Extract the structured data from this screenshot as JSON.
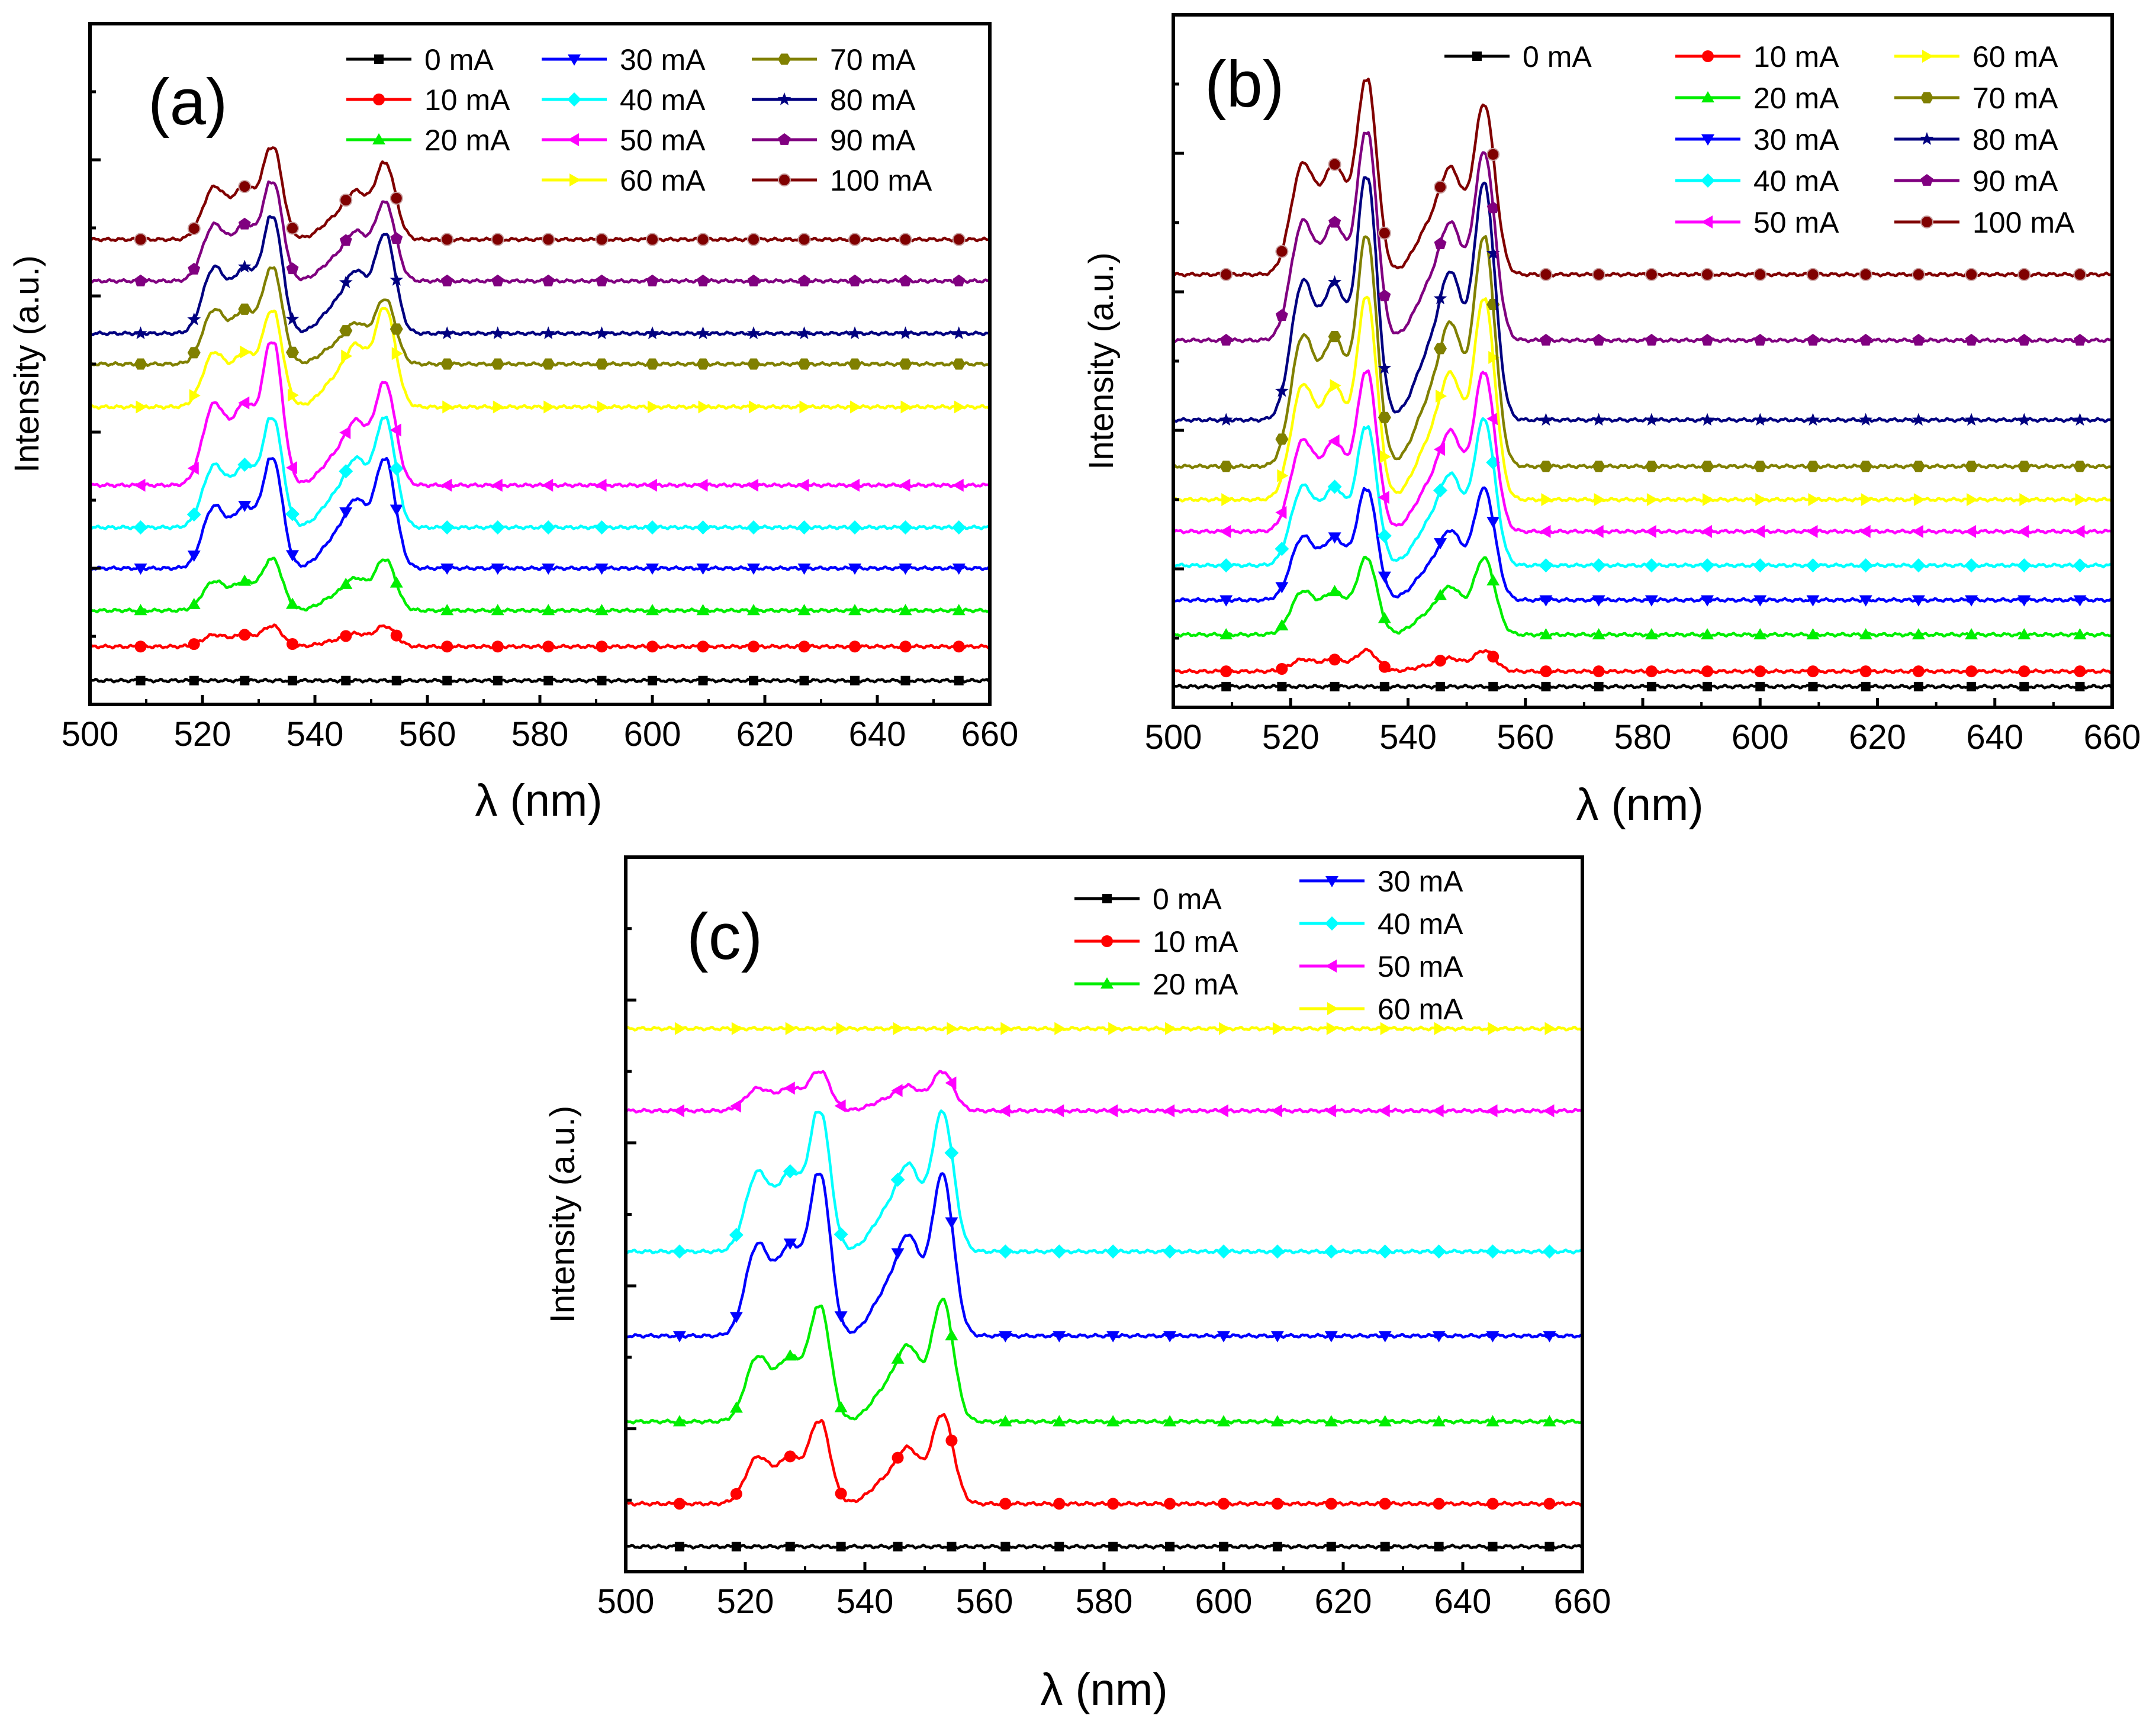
{
  "figure": {
    "xlabel": "λ (nm)",
    "ylabel": "Intensity (a.u.)",
    "xlim": [
      500,
      660
    ],
    "xticks": [
      500,
      520,
      540,
      560,
      580,
      600,
      620,
      640,
      660
    ]
  },
  "series_colors": {
    "0 mA": "#000000",
    "10 mA": "#ff0000",
    "20 mA": "#00ee00",
    "30 mA": "#0000ff",
    "40 mA": "#00ffff",
    "50 mA": "#ff00ff",
    "60 mA": "#ffff00",
    "70 mA": "#808000",
    "80 mA": "#000080",
    "90 mA": "#800080",
    "100 mA": "#800000"
  },
  "series_markers": {
    "0 mA": "square",
    "10 mA": "circle",
    "20 mA": "triangle-up",
    "30 mA": "triangle-down",
    "40 mA": "diamond",
    "50 mA": "triangle-left",
    "60 mA": "triangle-right",
    "70 mA": "hexagon",
    "80 mA": "star",
    "90 mA": "pentagon",
    "100 mA": "sphere"
  },
  "chart_data": [
    {
      "panel": "(a)",
      "type": "line",
      "title": "(a)",
      "xlabel": "λ (nm)",
      "ylabel": "Intensity (a.u.)",
      "xlim": [
        500,
        660
      ],
      "ylim": [
        0,
        100
      ],
      "peak_positions_nm": [
        532.5,
        552.5
      ],
      "shoulder_positions_nm": [
        522,
        547.5
      ],
      "series": [
        {
          "name": "0 mA",
          "baseline": 3.5,
          "peak1": 0,
          "peak2": 0
        },
        {
          "name": "10 mA",
          "baseline": 8.5,
          "peak1": 3.0,
          "peak2": 3.0
        },
        {
          "name": "20 mA",
          "baseline": 13.8,
          "peak1": 7.5,
          "peak2": 7.5
        },
        {
          "name": "30 mA",
          "baseline": 20.0,
          "peak1": 16.0,
          "peak2": 16.0
        },
        {
          "name": "40 mA",
          "baseline": 26.0,
          "peak1": 16.0,
          "peak2": 16.0
        },
        {
          "name": "50 mA",
          "baseline": 32.2,
          "peak1": 21.0,
          "peak2": 15.0
        },
        {
          "name": "60 mA",
          "baseline": 43.7,
          "peak1": 14.0,
          "peak2": 14.5
        },
        {
          "name": "70 mA",
          "baseline": 50.0,
          "peak1": 14.0,
          "peak2": 9.5
        },
        {
          "name": "80 mA",
          "baseline": 54.5,
          "peak1": 17.0,
          "peak2": 14.5
        },
        {
          "name": "90 mA",
          "baseline": 62.2,
          "peak1": 14.5,
          "peak2": 11.5
        },
        {
          "name": "100 mA",
          "baseline": 68.3,
          "peak1": 13.5,
          "peak2": 11.2
        }
      ]
    },
    {
      "panel": "(b)",
      "type": "line",
      "title": "(b)",
      "xlabel": "λ (nm)",
      "ylabel": "Intensity (a.u.)",
      "xlim": [
        500,
        660
      ],
      "ylim": [
        0,
        100
      ],
      "peak_positions_nm": [
        533,
        553
      ],
      "shoulder_positions_nm": [
        522,
        547.5
      ],
      "series": [
        {
          "name": "0 mA",
          "baseline": 3.0,
          "peak1": 0,
          "peak2": 0
        },
        {
          "name": "10 mA",
          "baseline": 5.2,
          "peak1": 3.0,
          "peak2": 3.0
        },
        {
          "name": "20 mA",
          "baseline": 10.5,
          "peak1": 11.0,
          "peak2": 11.0
        },
        {
          "name": "30 mA",
          "baseline": 15.5,
          "peak1": 16.0,
          "peak2": 16.0
        },
        {
          "name": "40 mA",
          "baseline": 20.5,
          "peak1": 20.0,
          "peak2": 21.0
        },
        {
          "name": "50 mA",
          "baseline": 25.4,
          "peak1": 23.0,
          "peak2": 23.0
        },
        {
          "name": "60 mA",
          "baseline": 30.0,
          "peak1": 29.0,
          "peak2": 29.0
        },
        {
          "name": "70 mA",
          "baseline": 34.8,
          "peak1": 33.0,
          "peak2": 33.0
        },
        {
          "name": "80 mA",
          "baseline": 41.5,
          "peak1": 35.0,
          "peak2": 34.0
        },
        {
          "name": "90 mA",
          "baseline": 53.0,
          "peak1": 30.0,
          "peak2": 27.0
        },
        {
          "name": "100 mA",
          "baseline": 62.5,
          "peak1": 28.0,
          "peak2": 24.5
        }
      ]
    },
    {
      "panel": "(c)",
      "type": "line",
      "title": "(c)",
      "xlabel": "λ (nm)",
      "ylabel": "Intensity (a.u.)",
      "xlim": [
        500,
        660
      ],
      "ylim": [
        0,
        100
      ],
      "peak_positions_nm": [
        532.5,
        553
      ],
      "shoulder_positions_nm": [
        522,
        548
      ],
      "series": [
        {
          "name": "0 mA",
          "baseline": 3.5,
          "peak1": 0,
          "peak2": 0
        },
        {
          "name": "10 mA",
          "baseline": 9.5,
          "peak1": 11.5,
          "peak2": 12.5
        },
        {
          "name": "20 mA",
          "baseline": 21.0,
          "peak1": 16.0,
          "peak2": 17.0
        },
        {
          "name": "30 mA",
          "baseline": 33.0,
          "peak1": 22.5,
          "peak2": 22.5
        },
        {
          "name": "40 mA",
          "baseline": 44.8,
          "peak1": 19.5,
          "peak2": 19.5
        },
        {
          "name": "50 mA",
          "baseline": 64.5,
          "peak1": 5.5,
          "peak2": 5.5
        },
        {
          "name": "60 mA",
          "baseline": 76.0,
          "peak1": 0,
          "peak2": 0
        }
      ]
    }
  ],
  "panels": [
    {
      "label": "(a)",
      "legend_columns": [
        [
          "0 mA",
          "10 mA",
          "20 mA"
        ],
        [
          "30 mA",
          "40 mA",
          "50 mA",
          "60 mA"
        ],
        [
          "70 mA",
          "80 mA",
          "90 mA",
          "100 mA"
        ]
      ]
    },
    {
      "label": "(b)",
      "legend_columns": [
        [
          "0 mA"
        ],
        [
          "10 mA",
          "20 mA",
          "30 mA",
          "40 mA",
          "50 mA"
        ],
        [
          "60 mA",
          "70 mA",
          "80 mA",
          "90 mA",
          "100 mA"
        ]
      ]
    },
    {
      "label": "(c)",
      "legend_columns": [
        [
          "0 mA",
          "10 mA",
          "20 mA"
        ],
        [
          "30 mA",
          "40 mA",
          "50 mA",
          "60 mA"
        ]
      ]
    }
  ]
}
